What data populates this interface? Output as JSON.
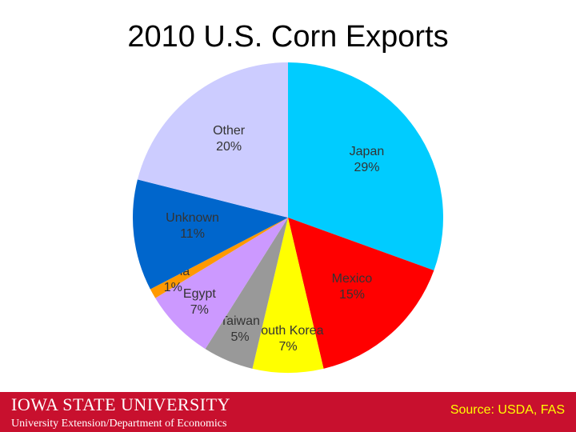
{
  "chart_data": {
    "type": "pie",
    "title": "2010 U.S. Corn Exports",
    "categories": [
      "Japan",
      "Mexico",
      "South Korea",
      "Taiwan",
      "Egypt",
      "China",
      "Unknown",
      "Other"
    ],
    "values": [
      29,
      15,
      7,
      5,
      7,
      1,
      11,
      20
    ],
    "value_labels": [
      "29%",
      "15%",
      "7%",
      "5%",
      "7%",
      "1%",
      "11%",
      "20%"
    ],
    "colors": [
      "#00ccff",
      "#ff0000",
      "#ffff00",
      "#999999",
      "#cc99ff",
      "#ff9900",
      "#0066cc",
      "#ccccff"
    ],
    "source": "Source: USDA, FAS"
  },
  "footer": {
    "logo": "IOWA STATE UNIVERSITY",
    "department": "University Extension/Department of Economics"
  }
}
